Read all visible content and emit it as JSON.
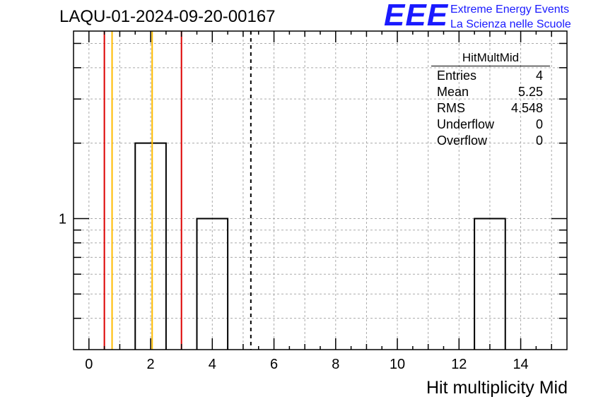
{
  "header": {
    "run_id": "LAQU-01-2024-09-20-00167",
    "logo": "EEE",
    "logo_line1": "Extreme Energy Events",
    "logo_line2": "La Scienza nelle Scuole",
    "logo_color": "#1a1aff"
  },
  "stats_box": {
    "title": "HitMultMid",
    "rows": [
      {
        "label": "Entries",
        "value": "4"
      },
      {
        "label": "Mean",
        "value": "5.25"
      },
      {
        "label": "RMS",
        "value": "4.548"
      },
      {
        "label": "Underflow",
        "value": "0"
      },
      {
        "label": "Overflow",
        "value": "0"
      }
    ]
  },
  "chart_data": {
    "type": "bar",
    "style": "histogram-outline",
    "xlabel": "Hit multiplicity Mid",
    "ylabel": "",
    "xlim": [
      -0.5,
      15.5
    ],
    "ylim": [
      0.3,
      5.6
    ],
    "yscale": "log",
    "grid": true,
    "x_ticks": [
      "0",
      "2",
      "4",
      "6",
      "8",
      "10",
      "12",
      "14"
    ],
    "y_tick_labels": [
      "1"
    ],
    "bins": [
      {
        "x": 2,
        "value": 2
      },
      {
        "x": 4,
        "value": 1
      },
      {
        "x": 13,
        "value": 1
      }
    ],
    "bin_width": 1,
    "reference_lines": [
      {
        "x": 0.5,
        "color": "#dd0000",
        "style": "solid"
      },
      {
        "x": 0.75,
        "color": "#ffbb00",
        "style": "solid"
      },
      {
        "x": 2.05,
        "color": "#ffbb00",
        "style": "solid"
      },
      {
        "x": 3.0,
        "color": "#dd0000",
        "style": "solid"
      },
      {
        "x": 5.25,
        "color": "#000000",
        "style": "dashed"
      }
    ]
  }
}
